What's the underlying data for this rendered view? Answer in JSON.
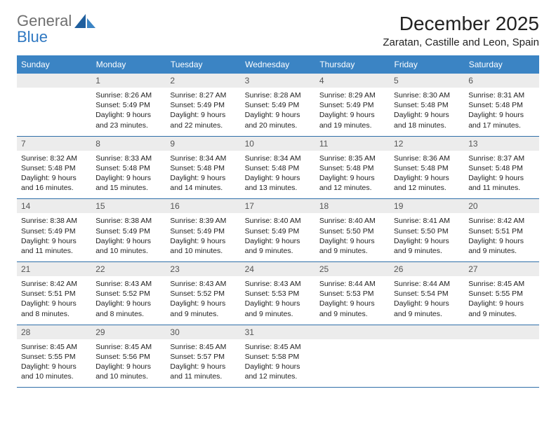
{
  "brand": {
    "line1": "General",
    "line2": "Blue"
  },
  "colors": {
    "header_bg": "#3b84c4",
    "header_text": "#ffffff",
    "row_divider": "#2f6fa8",
    "daynum_bg": "#ececec",
    "body_text": "#222222",
    "logo_gray": "#6f6f6f",
    "logo_blue": "#2f78c2"
  },
  "title": "December 2025",
  "location": "Zaratan, Castille and Leon, Spain",
  "weekdays": [
    "Sunday",
    "Monday",
    "Tuesday",
    "Wednesday",
    "Thursday",
    "Friday",
    "Saturday"
  ],
  "weeks": [
    [
      {
        "n": "",
        "lines": []
      },
      {
        "n": "1",
        "lines": [
          "Sunrise: 8:26 AM",
          "Sunset: 5:49 PM",
          "Daylight: 9 hours",
          "and 23 minutes."
        ]
      },
      {
        "n": "2",
        "lines": [
          "Sunrise: 8:27 AM",
          "Sunset: 5:49 PM",
          "Daylight: 9 hours",
          "and 22 minutes."
        ]
      },
      {
        "n": "3",
        "lines": [
          "Sunrise: 8:28 AM",
          "Sunset: 5:49 PM",
          "Daylight: 9 hours",
          "and 20 minutes."
        ]
      },
      {
        "n": "4",
        "lines": [
          "Sunrise: 8:29 AM",
          "Sunset: 5:49 PM",
          "Daylight: 9 hours",
          "and 19 minutes."
        ]
      },
      {
        "n": "5",
        "lines": [
          "Sunrise: 8:30 AM",
          "Sunset: 5:48 PM",
          "Daylight: 9 hours",
          "and 18 minutes."
        ]
      },
      {
        "n": "6",
        "lines": [
          "Sunrise: 8:31 AM",
          "Sunset: 5:48 PM",
          "Daylight: 9 hours",
          "and 17 minutes."
        ]
      }
    ],
    [
      {
        "n": "7",
        "lines": [
          "Sunrise: 8:32 AM",
          "Sunset: 5:48 PM",
          "Daylight: 9 hours",
          "and 16 minutes."
        ]
      },
      {
        "n": "8",
        "lines": [
          "Sunrise: 8:33 AM",
          "Sunset: 5:48 PM",
          "Daylight: 9 hours",
          "and 15 minutes."
        ]
      },
      {
        "n": "9",
        "lines": [
          "Sunrise: 8:34 AM",
          "Sunset: 5:48 PM",
          "Daylight: 9 hours",
          "and 14 minutes."
        ]
      },
      {
        "n": "10",
        "lines": [
          "Sunrise: 8:34 AM",
          "Sunset: 5:48 PM",
          "Daylight: 9 hours",
          "and 13 minutes."
        ]
      },
      {
        "n": "11",
        "lines": [
          "Sunrise: 8:35 AM",
          "Sunset: 5:48 PM",
          "Daylight: 9 hours",
          "and 12 minutes."
        ]
      },
      {
        "n": "12",
        "lines": [
          "Sunrise: 8:36 AM",
          "Sunset: 5:48 PM",
          "Daylight: 9 hours",
          "and 12 minutes."
        ]
      },
      {
        "n": "13",
        "lines": [
          "Sunrise: 8:37 AM",
          "Sunset: 5:48 PM",
          "Daylight: 9 hours",
          "and 11 minutes."
        ]
      }
    ],
    [
      {
        "n": "14",
        "lines": [
          "Sunrise: 8:38 AM",
          "Sunset: 5:49 PM",
          "Daylight: 9 hours",
          "and 11 minutes."
        ]
      },
      {
        "n": "15",
        "lines": [
          "Sunrise: 8:38 AM",
          "Sunset: 5:49 PM",
          "Daylight: 9 hours",
          "and 10 minutes."
        ]
      },
      {
        "n": "16",
        "lines": [
          "Sunrise: 8:39 AM",
          "Sunset: 5:49 PM",
          "Daylight: 9 hours",
          "and 10 minutes."
        ]
      },
      {
        "n": "17",
        "lines": [
          "Sunrise: 8:40 AM",
          "Sunset: 5:49 PM",
          "Daylight: 9 hours",
          "and 9 minutes."
        ]
      },
      {
        "n": "18",
        "lines": [
          "Sunrise: 8:40 AM",
          "Sunset: 5:50 PM",
          "Daylight: 9 hours",
          "and 9 minutes."
        ]
      },
      {
        "n": "19",
        "lines": [
          "Sunrise: 8:41 AM",
          "Sunset: 5:50 PM",
          "Daylight: 9 hours",
          "and 9 minutes."
        ]
      },
      {
        "n": "20",
        "lines": [
          "Sunrise: 8:42 AM",
          "Sunset: 5:51 PM",
          "Daylight: 9 hours",
          "and 9 minutes."
        ]
      }
    ],
    [
      {
        "n": "21",
        "lines": [
          "Sunrise: 8:42 AM",
          "Sunset: 5:51 PM",
          "Daylight: 9 hours",
          "and 8 minutes."
        ]
      },
      {
        "n": "22",
        "lines": [
          "Sunrise: 8:43 AM",
          "Sunset: 5:52 PM",
          "Daylight: 9 hours",
          "and 8 minutes."
        ]
      },
      {
        "n": "23",
        "lines": [
          "Sunrise: 8:43 AM",
          "Sunset: 5:52 PM",
          "Daylight: 9 hours",
          "and 9 minutes."
        ]
      },
      {
        "n": "24",
        "lines": [
          "Sunrise: 8:43 AM",
          "Sunset: 5:53 PM",
          "Daylight: 9 hours",
          "and 9 minutes."
        ]
      },
      {
        "n": "25",
        "lines": [
          "Sunrise: 8:44 AM",
          "Sunset: 5:53 PM",
          "Daylight: 9 hours",
          "and 9 minutes."
        ]
      },
      {
        "n": "26",
        "lines": [
          "Sunrise: 8:44 AM",
          "Sunset: 5:54 PM",
          "Daylight: 9 hours",
          "and 9 minutes."
        ]
      },
      {
        "n": "27",
        "lines": [
          "Sunrise: 8:45 AM",
          "Sunset: 5:55 PM",
          "Daylight: 9 hours",
          "and 9 minutes."
        ]
      }
    ],
    [
      {
        "n": "28",
        "lines": [
          "Sunrise: 8:45 AM",
          "Sunset: 5:55 PM",
          "Daylight: 9 hours",
          "and 10 minutes."
        ]
      },
      {
        "n": "29",
        "lines": [
          "Sunrise: 8:45 AM",
          "Sunset: 5:56 PM",
          "Daylight: 9 hours",
          "and 10 minutes."
        ]
      },
      {
        "n": "30",
        "lines": [
          "Sunrise: 8:45 AM",
          "Sunset: 5:57 PM",
          "Daylight: 9 hours",
          "and 11 minutes."
        ]
      },
      {
        "n": "31",
        "lines": [
          "Sunrise: 8:45 AM",
          "Sunset: 5:58 PM",
          "Daylight: 9 hours",
          "and 12 minutes."
        ]
      },
      {
        "n": "",
        "lines": []
      },
      {
        "n": "",
        "lines": []
      },
      {
        "n": "",
        "lines": []
      }
    ]
  ]
}
